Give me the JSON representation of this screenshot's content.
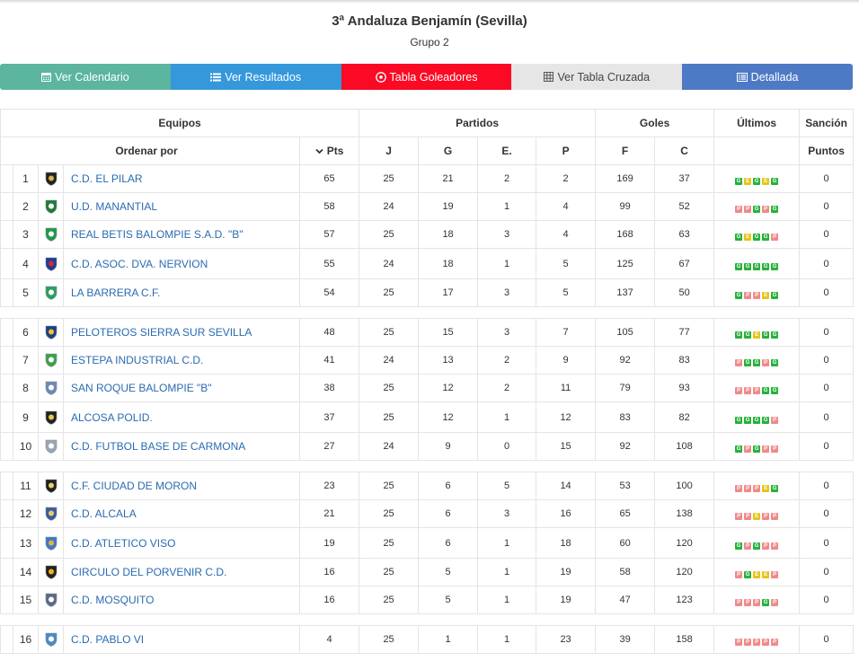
{
  "header": {
    "title": "3ª Andaluza Benjamín (Sevilla)",
    "subtitle": "Grupo 2"
  },
  "nav": [
    {
      "label": "Ver Calendario",
      "icon": "calendar-icon",
      "color": "#5bb59f"
    },
    {
      "label": "Ver Resultados",
      "icon": "list-icon",
      "color": "#3498db"
    },
    {
      "label": "Tabla Goleadores",
      "icon": "soccer-ball-icon",
      "color": "#fa0a24"
    },
    {
      "label": "Ver Tabla Cruzada",
      "icon": "grid-icon",
      "color": "#e6e6e6"
    },
    {
      "label": "Detallada",
      "icon": "detail-list-icon",
      "color": "#4e79c5"
    }
  ],
  "table": {
    "groups": {
      "equipos": "Equipos",
      "partidos": "Partidos",
      "goles": "Goles",
      "ultimos": "Últimos",
      "sancion": "Sanción"
    },
    "columns": {
      "ordenar": "Ordenar por",
      "pts": "Pts",
      "j": "J",
      "g": "G",
      "e": "E.",
      "p": "P",
      "f": "F",
      "c": "C",
      "puntos": "Puntos"
    },
    "rows": [
      {
        "pos": "1",
        "team": "C.D. EL PILAR",
        "pts": "65",
        "j": "25",
        "g": "21",
        "e": "2",
        "p": "2",
        "f": "169",
        "c": "37",
        "last": [
          "G",
          "E",
          "G",
          "E",
          "G"
        ],
        "sancion": "0",
        "shield": [
          "#222222",
          "#e0b24a"
        ]
      },
      {
        "pos": "2",
        "team": "U.D. MANANTIAL",
        "pts": "58",
        "j": "24",
        "g": "19",
        "e": "1",
        "p": "4",
        "f": "99",
        "c": "52",
        "last": [
          "P",
          "P",
          "G",
          "P",
          "G"
        ],
        "sancion": "0",
        "shield": [
          "#1e7d3a",
          "#ffffff"
        ]
      },
      {
        "pos": "3",
        "team": "REAL BETIS BALOMPIE S.A.D. \"B\"",
        "pts": "57",
        "j": "25",
        "g": "18",
        "e": "3",
        "p": "4",
        "f": "168",
        "c": "63",
        "last": [
          "G",
          "E",
          "G",
          "G",
          "P"
        ],
        "sancion": "0",
        "shield": [
          "#1f9a4a",
          "#ffffff"
        ]
      },
      {
        "pos": "4",
        "team": "C.D. ASOC. DVA. NERVION",
        "pts": "55",
        "j": "24",
        "g": "18",
        "e": "1",
        "p": "5",
        "f": "125",
        "c": "67",
        "last": [
          "G",
          "G",
          "G",
          "G",
          "G"
        ],
        "sancion": "0",
        "shield": [
          "#1a3e9a",
          "#d62a2a"
        ]
      },
      {
        "pos": "5",
        "team": "LA BARRERA C.F.",
        "pts": "54",
        "j": "25",
        "g": "17",
        "e": "3",
        "p": "5",
        "f": "137",
        "c": "50",
        "last": [
          "G",
          "P",
          "P",
          "E",
          "G"
        ],
        "sancion": "0",
        "shield": [
          "#2aa060",
          "#ffffff"
        ]
      },
      {
        "gap": true
      },
      {
        "pos": "6",
        "team": "PELOTEROS SIERRA SUR SEVILLA",
        "pts": "48",
        "j": "25",
        "g": "15",
        "e": "3",
        "p": "7",
        "f": "105",
        "c": "77",
        "last": [
          "G",
          "G",
          "E",
          "G",
          "G"
        ],
        "sancion": "0",
        "shield": [
          "#1c3f8a",
          "#f2c230"
        ]
      },
      {
        "pos": "7",
        "team": "ESTEPA INDUSTRIAL C.D.",
        "pts": "41",
        "j": "24",
        "g": "13",
        "e": "2",
        "p": "9",
        "f": "92",
        "c": "83",
        "last": [
          "P",
          "G",
          "G",
          "P",
          "G"
        ],
        "sancion": "0",
        "shield": [
          "#3aa34a",
          "#ffffff"
        ]
      },
      {
        "pos": "8",
        "team": "SAN ROQUE BALOMPIE \"B\"",
        "pts": "38",
        "j": "25",
        "g": "12",
        "e": "2",
        "p": "11",
        "f": "79",
        "c": "93",
        "last": [
          "P",
          "P",
          "P",
          "G",
          "G"
        ],
        "sancion": "0",
        "shield": [
          "#6b8ab8",
          "#ffffff"
        ]
      },
      {
        "pos": "9",
        "team": "ALCOSA POLID.",
        "pts": "37",
        "j": "25",
        "g": "12",
        "e": "1",
        "p": "12",
        "f": "83",
        "c": "82",
        "last": [
          "G",
          "G",
          "G",
          "G",
          "P"
        ],
        "sancion": "0",
        "shield": [
          "#222222",
          "#e6c94a"
        ]
      },
      {
        "pos": "10",
        "team": "C.D. FUTBOL BASE DE CARMONA",
        "pts": "27",
        "j": "24",
        "g": "9",
        "e": "0",
        "p": "15",
        "f": "92",
        "c": "108",
        "last": [
          "G",
          "P",
          "G",
          "P",
          "P"
        ],
        "sancion": "0",
        "shield": [
          "#9aa6b8",
          "#ffffff"
        ]
      },
      {
        "gap": true
      },
      {
        "pos": "11",
        "team": "C.F. CIUDAD DE MORON",
        "pts": "23",
        "j": "25",
        "g": "6",
        "e": "5",
        "p": "14",
        "f": "53",
        "c": "100",
        "last": [
          "P",
          "P",
          "P",
          "E",
          "G"
        ],
        "sancion": "0",
        "shield": [
          "#222222",
          "#e6d070"
        ]
      },
      {
        "pos": "12",
        "team": "C.D. ALCALA",
        "pts": "21",
        "j": "25",
        "g": "6",
        "e": "3",
        "p": "16",
        "f": "65",
        "c": "138",
        "last": [
          "P",
          "P",
          "E",
          "P",
          "P"
        ],
        "sancion": "0",
        "shield": [
          "#3a5aa8",
          "#e8d060"
        ]
      },
      {
        "pos": "13",
        "team": "C.D. ATLETICO VISO",
        "pts": "19",
        "j": "25",
        "g": "6",
        "e": "1",
        "p": "18",
        "f": "60",
        "c": "120",
        "last": [
          "G",
          "P",
          "G",
          "P",
          "P"
        ],
        "sancion": "0",
        "shield": [
          "#3a7ac8",
          "#e8b040"
        ]
      },
      {
        "pos": "14",
        "team": "CIRCULO DEL PORVENIR C.D.",
        "pts": "16",
        "j": "25",
        "g": "5",
        "e": "1",
        "p": "19",
        "f": "58",
        "c": "120",
        "last": [
          "P",
          "G",
          "E",
          "E",
          "P"
        ],
        "sancion": "0",
        "shield": [
          "#222222",
          "#f0b020"
        ]
      },
      {
        "pos": "15",
        "team": "C.D. MOSQUITO",
        "pts": "16",
        "j": "25",
        "g": "5",
        "e": "1",
        "p": "19",
        "f": "47",
        "c": "123",
        "last": [
          "P",
          "P",
          "P",
          "G",
          "P"
        ],
        "sancion": "0",
        "shield": [
          "#5a6a8a",
          "#ffffff"
        ]
      },
      {
        "gap": true
      },
      {
        "pos": "16",
        "team": "C.D. PABLO VI",
        "pts": "4",
        "j": "25",
        "g": "1",
        "e": "1",
        "p": "23",
        "f": "39",
        "c": "158",
        "last": [
          "P",
          "P",
          "P",
          "P",
          "P"
        ],
        "sancion": "0",
        "shield": [
          "#4a8ac8",
          "#ffffff"
        ]
      }
    ]
  }
}
